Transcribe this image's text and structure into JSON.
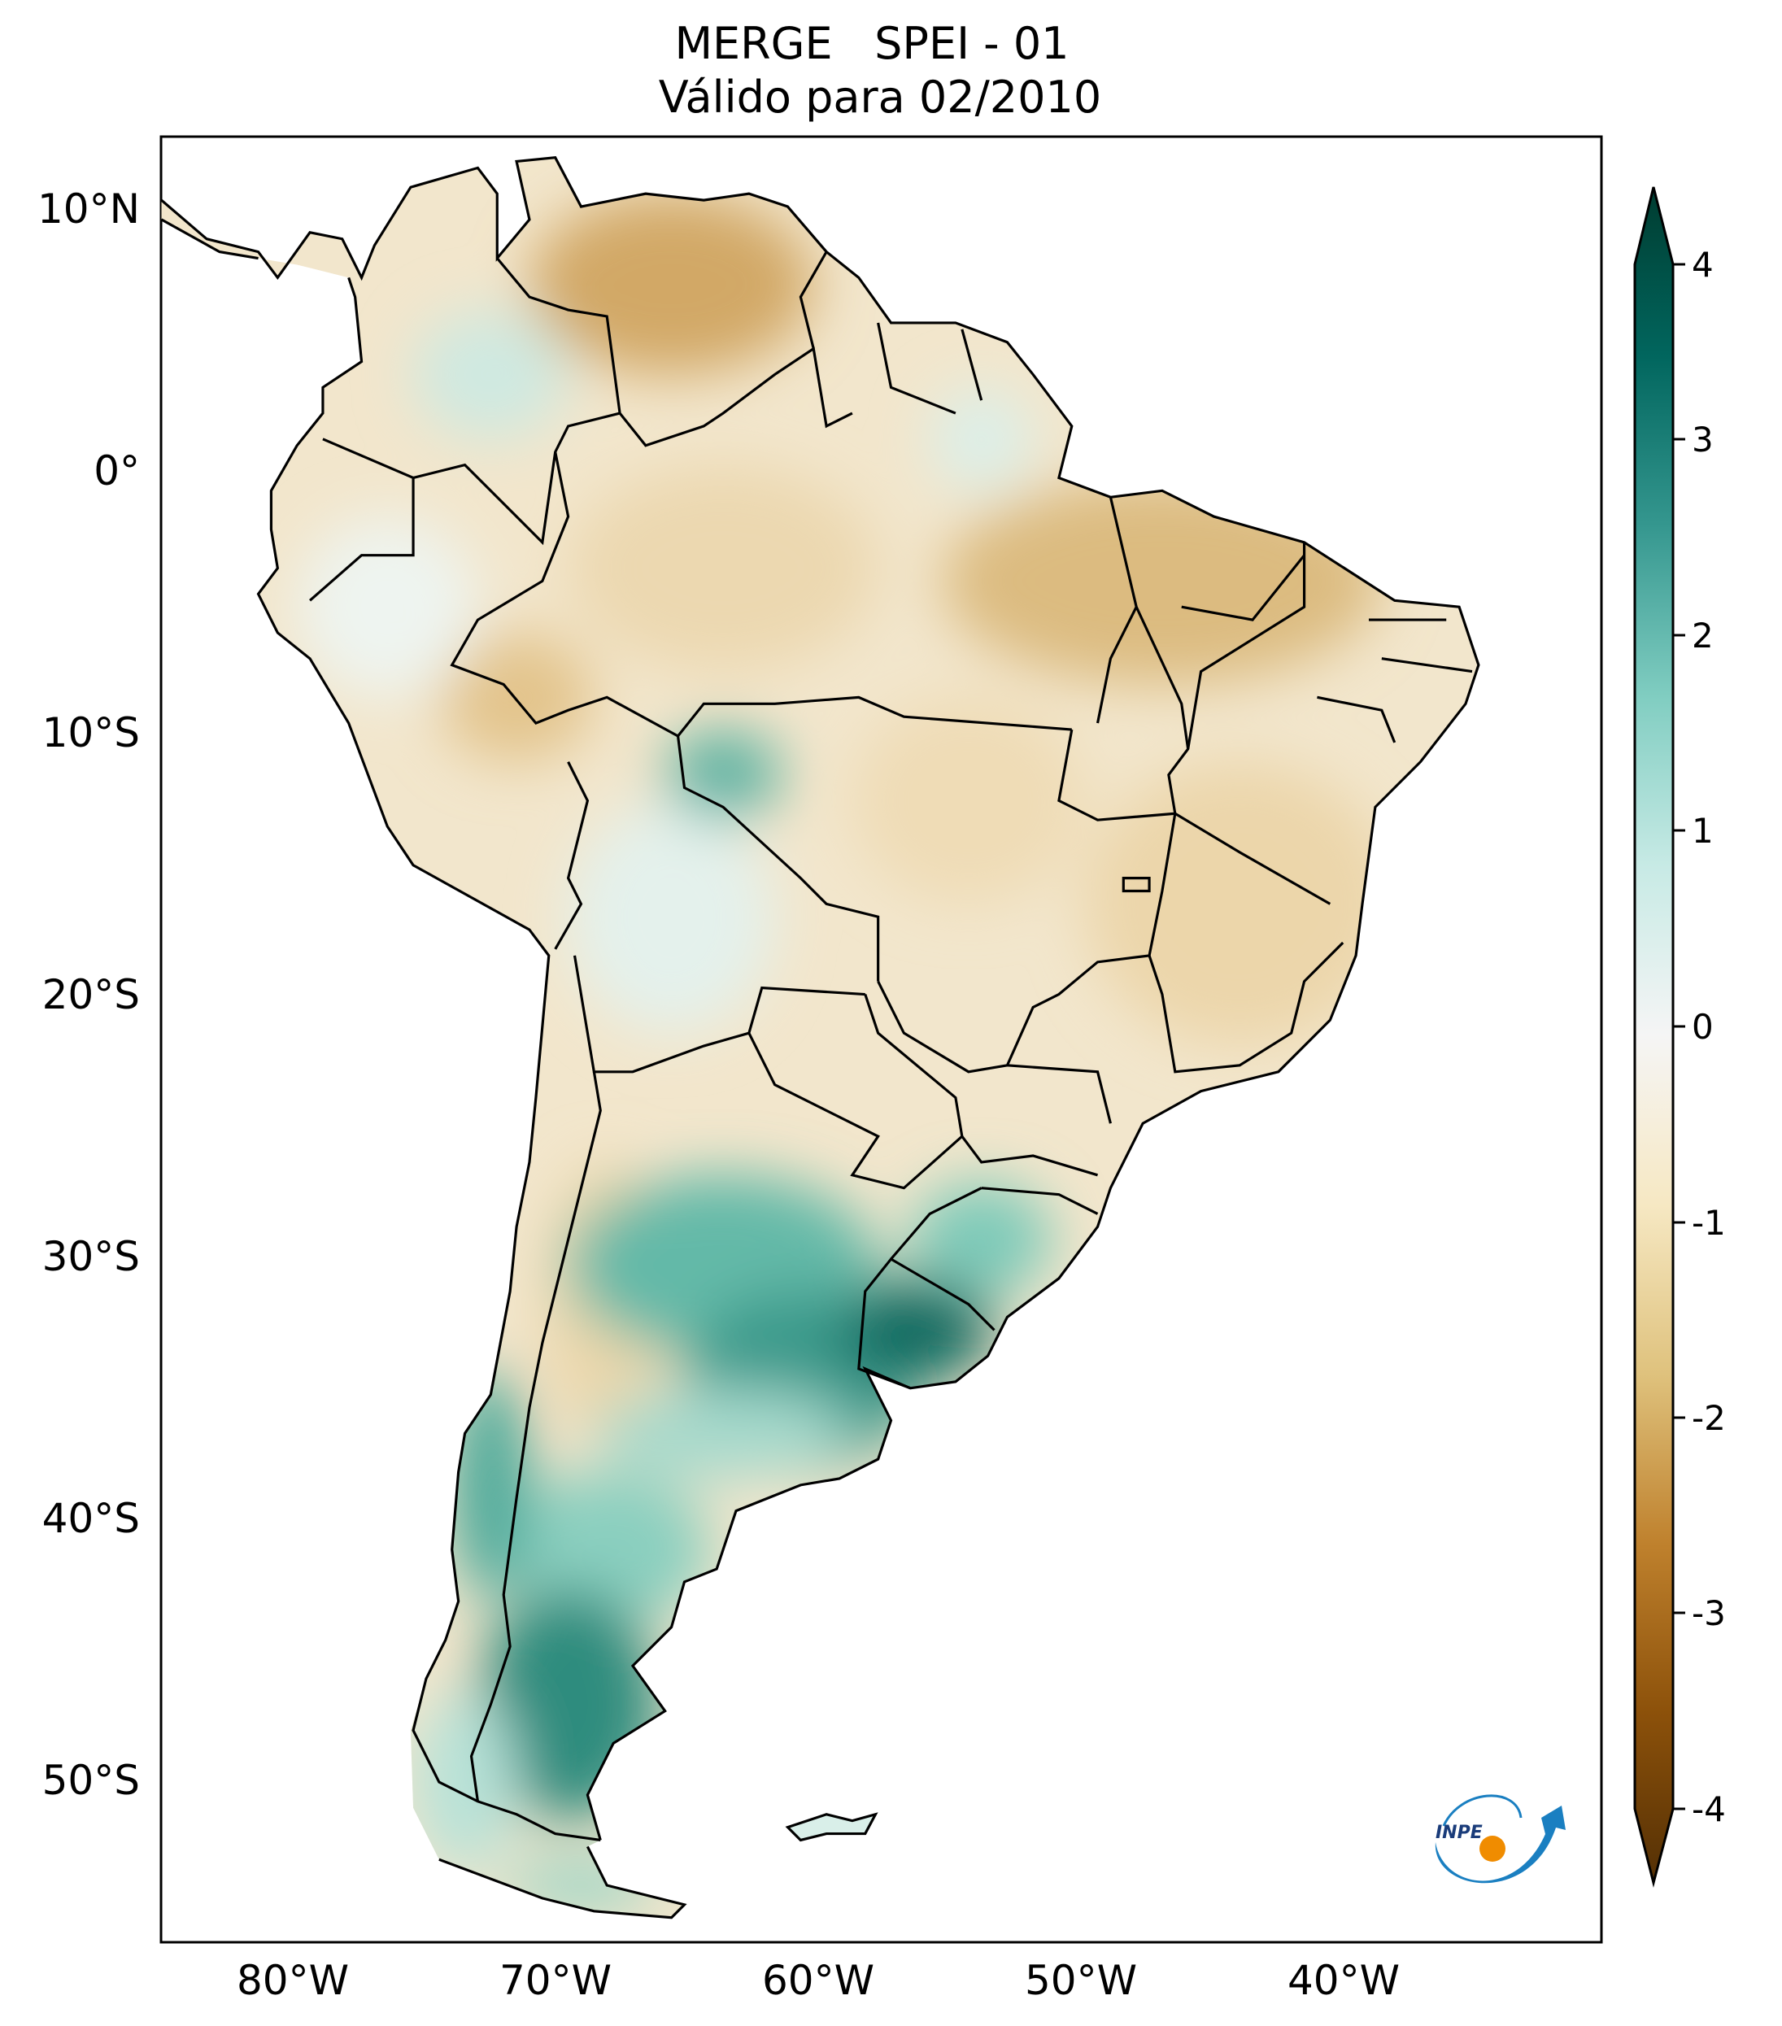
{
  "title": {
    "line1": "MERGE   SPEI - 01",
    "line2": "Válido para 02/2010"
  },
  "logo_text": "INPE",
  "chart_data": {
    "type": "heatmap",
    "title": "MERGE   SPEI - 01 / Válido para 02/2010",
    "variable": "SPEI - 01",
    "period": "02/2010",
    "projection": "equirectangular",
    "lon_range": [
      -85,
      -30.2
    ],
    "lat_range": [
      -56.2,
      12.7
    ],
    "xticks": [
      {
        "value": -80,
        "label": "80°W"
      },
      {
        "value": -70,
        "label": "70°W"
      },
      {
        "value": -60,
        "label": "60°W"
      },
      {
        "value": -50,
        "label": "50°W"
      },
      {
        "value": -40,
        "label": "40°W"
      }
    ],
    "yticks": [
      {
        "value": 10,
        "label": "10°N"
      },
      {
        "value": 0,
        "label": "0°"
      },
      {
        "value": -10,
        "label": "10°S"
      },
      {
        "value": -20,
        "label": "20°S"
      },
      {
        "value": -30,
        "label": "30°S"
      },
      {
        "value": -40,
        "label": "40°S"
      },
      {
        "value": -50,
        "label": "50°S"
      }
    ],
    "colorbar": {
      "range": [
        -4,
        4
      ],
      "extend": "both",
      "ticks": [
        {
          "value": 4,
          "label": "4"
        },
        {
          "value": 3,
          "label": "3"
        },
        {
          "value": 2,
          "label": "2"
        },
        {
          "value": 1,
          "label": "1"
        },
        {
          "value": 0,
          "label": "0"
        },
        {
          "value": -1,
          "label": "-1"
        },
        {
          "value": -2,
          "label": "-2"
        },
        {
          "value": -3,
          "label": "-3"
        },
        {
          "value": -4,
          "label": "-4"
        }
      ],
      "colormap": [
        "#003c30",
        "#01665e",
        "#35978f",
        "#80cdc1",
        "#c7eae5",
        "#f5f5f5",
        "#f6e8c3",
        "#dfc27d",
        "#bf812d",
        "#8c510a",
        "#543005"
      ]
    },
    "regions_summary": [
      {
        "region": "Uruguay / NE Argentina",
        "spei_approx": 3.0
      },
      {
        "region": "Patagonia",
        "spei_approx": 2.0
      },
      {
        "region": "Northern Venezuela",
        "spei_approx": -2.0
      },
      {
        "region": "Northeast Brazil",
        "spei_approx": -1.3
      }
    ]
  }
}
